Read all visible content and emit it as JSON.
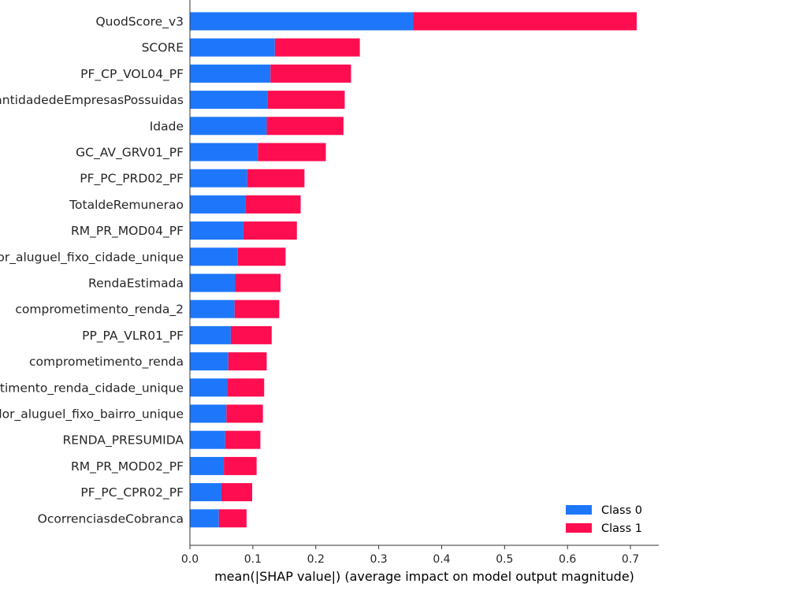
{
  "chart_data": {
    "type": "bar",
    "orientation": "horizontal",
    "stacked": true,
    "categories": [
      "QuodScore_v3",
      "SCORE",
      "PF_CP_VOL04_PF",
      "QuantidadedeEmpresasPossuidas",
      "Idade",
      "GC_AV_GRV01_PF",
      "PF_PC_PRD02_PF",
      "TotaldeRemunerao",
      "RM_PR_MOD04_PF",
      "valor_aluguel_fixo_cidade_unique",
      "RendaEstimada",
      "comprometimento_renda_2",
      "PP_PA_VLR01_PF",
      "comprometimento_renda",
      "comprometimento_renda_cidade_unique",
      "valor_aluguel_fixo_bairro_unique",
      "RENDA_PRESUMIDA",
      "RM_PR_MOD02_PF",
      "PF_PC_CPR02_PF",
      "OcorrenciasdeCobranca"
    ],
    "series": [
      {
        "name": "Class 0",
        "color": "#1e77fa",
        "values": [
          0.355,
          0.135,
          0.128,
          0.123,
          0.122,
          0.108,
          0.091,
          0.088,
          0.085,
          0.076,
          0.072,
          0.071,
          0.065,
          0.061,
          0.059,
          0.058,
          0.056,
          0.054,
          0.05,
          0.046
        ]
      },
      {
        "name": "Class 1",
        "color": "#ff0d51",
        "values": [
          0.355,
          0.135,
          0.128,
          0.123,
          0.122,
          0.108,
          0.091,
          0.088,
          0.085,
          0.076,
          0.072,
          0.071,
          0.065,
          0.061,
          0.059,
          0.058,
          0.056,
          0.052,
          0.049,
          0.044
        ]
      }
    ],
    "xlabel": "mean(|SHAP value|) (average impact on model output magnitude)",
    "xlim": [
      0,
      0.745
    ],
    "xticks": [
      0.0,
      0.1,
      0.2,
      0.3,
      0.4,
      0.5,
      0.6,
      0.7
    ],
    "xtick_labels": [
      "0.0",
      "0.1",
      "0.2",
      "0.3",
      "0.4",
      "0.5",
      "0.6",
      "0.7"
    ],
    "legend_position": "bottom-right",
    "grid": false,
    "axis_color": "#333333"
  }
}
